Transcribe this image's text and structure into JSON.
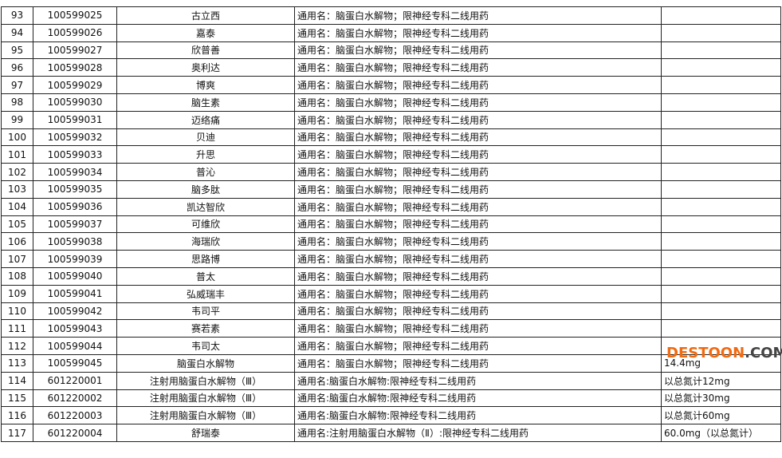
{
  "rows": [
    {
      "no": "93",
      "code": "100599025",
      "name": "古立西",
      "note": "通用名：脑蛋白水解物；限神经专科二线用药",
      "spec": ""
    },
    {
      "no": "94",
      "code": "100599026",
      "name": "嘉泰",
      "note": "通用名：脑蛋白水解物；限神经专科二线用药",
      "spec": ""
    },
    {
      "no": "95",
      "code": "100599027",
      "name": "欣普善",
      "note": "通用名：脑蛋白水解物；限神经专科二线用药",
      "spec": ""
    },
    {
      "no": "96",
      "code": "100599028",
      "name": "奥利达",
      "note": "通用名：脑蛋白水解物；限神经专科二线用药",
      "spec": ""
    },
    {
      "no": "97",
      "code": "100599029",
      "name": "博爽",
      "note": "通用名：脑蛋白水解物；限神经专科二线用药",
      "spec": ""
    },
    {
      "no": "98",
      "code": "100599030",
      "name": "脑生素",
      "note": "通用名：脑蛋白水解物；限神经专科二线用药",
      "spec": ""
    },
    {
      "no": "99",
      "code": "100599031",
      "name": "迈络痛",
      "note": "通用名：脑蛋白水解物；限神经专科二线用药",
      "spec": ""
    },
    {
      "no": "100",
      "code": "100599032",
      "name": "贝迪",
      "note": "通用名：脑蛋白水解物；限神经专科二线用药",
      "spec": ""
    },
    {
      "no": "101",
      "code": "100599033",
      "name": "升思",
      "note": "通用名：脑蛋白水解物；限神经专科二线用药",
      "spec": ""
    },
    {
      "no": "102",
      "code": "100599034",
      "name": "普沁",
      "note": "通用名：脑蛋白水解物；限神经专科二线用药",
      "spec": ""
    },
    {
      "no": "103",
      "code": "100599035",
      "name": "脑多肽",
      "note": "通用名：脑蛋白水解物；限神经专科二线用药",
      "spec": ""
    },
    {
      "no": "104",
      "code": "100599036",
      "name": "凯达智欣",
      "note": "通用名：脑蛋白水解物；限神经专科二线用药",
      "spec": ""
    },
    {
      "no": "105",
      "code": "100599037",
      "name": "可维欣",
      "note": "通用名：脑蛋白水解物；限神经专科二线用药",
      "spec": ""
    },
    {
      "no": "106",
      "code": "100599038",
      "name": "海瑞欣",
      "note": "通用名：脑蛋白水解物；限神经专科二线用药",
      "spec": ""
    },
    {
      "no": "107",
      "code": "100599039",
      "name": "思路博",
      "note": "通用名：脑蛋白水解物；限神经专科二线用药",
      "spec": ""
    },
    {
      "no": "108",
      "code": "100599040",
      "name": "普太",
      "note": "通用名：脑蛋白水解物；限神经专科二线用药",
      "spec": ""
    },
    {
      "no": "109",
      "code": "100599041",
      "name": "弘威瑞丰",
      "note": "通用名：脑蛋白水解物；限神经专科二线用药",
      "spec": ""
    },
    {
      "no": "110",
      "code": "100599042",
      "name": "韦司平",
      "note": "通用名：脑蛋白水解物；限神经专科二线用药",
      "spec": ""
    },
    {
      "no": "111",
      "code": "100599043",
      "name": "赛若素",
      "note": "通用名：脑蛋白水解物；限神经专科二线用药",
      "spec": ""
    },
    {
      "no": "112",
      "code": "100599044",
      "name": "韦司太",
      "note": "通用名：脑蛋白水解物；限神经专科二线用药",
      "spec": ""
    },
    {
      "no": "113",
      "code": "100599045",
      "name": "脑蛋白水解物",
      "note": "通用名：脑蛋白水解物；限神经专科二线用药",
      "spec": "14.4mg"
    },
    {
      "no": "114",
      "code": "601220001",
      "name": "注射用脑蛋白水解物（Ⅲ）",
      "note": "通用名:脑蛋白水解物:限神经专科二线用药",
      "spec": "以总氮计12mg"
    },
    {
      "no": "115",
      "code": "601220002",
      "name": "注射用脑蛋白水解物（Ⅲ）",
      "note": "通用名:脑蛋白水解物:限神经专科二线用药",
      "spec": "以总氮计30mg"
    },
    {
      "no": "116",
      "code": "601220003",
      "name": "注射用脑蛋白水解物（Ⅲ）",
      "note": "通用名:脑蛋白水解物:限神经专科二线用药",
      "spec": "以总氮计60mg"
    },
    {
      "no": "117",
      "code": "601220004",
      "name": "舒瑞泰",
      "note": "通用名:注射用脑蛋白水解物（Ⅱ）:限神经专科二线用药",
      "spec": "60.0mg（以总氮计）"
    }
  ],
  "watermark": {
    "part1": "DESTOON",
    "part2": ".COM"
  }
}
